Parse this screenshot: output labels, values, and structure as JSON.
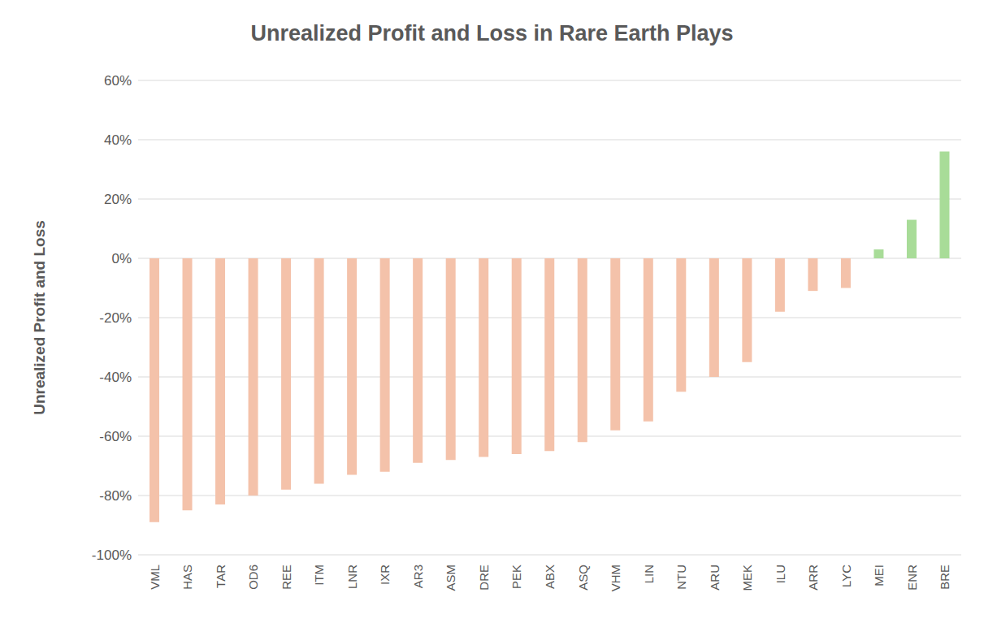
{
  "chart_data": {
    "type": "bar",
    "title": "Unrealized Profit and Loss in Rare Earth Plays",
    "y_label": "Unrealized Profit and Loss",
    "categories": [
      "VML",
      "HAS",
      "TAR",
      "OD6",
      "REE",
      "ITM",
      "LNR",
      "IXR",
      "AR3",
      "ASM",
      "DRE",
      "PEK",
      "ABX",
      "ASQ",
      "VHM",
      "LIN",
      "NTU",
      "ARU",
      "MEK",
      "ILU",
      "ARR",
      "LYC",
      "MEI",
      "ENR",
      "BRE"
    ],
    "values": [
      -89,
      -85,
      -83,
      -80,
      -78,
      -76,
      -73,
      -72,
      -69,
      -68,
      -67,
      -66,
      -65,
      -62,
      -58,
      -55,
      -45,
      -40,
      -35,
      -18,
      -11,
      -10,
      3,
      13,
      36
    ],
    "colors": [
      "#f4c2aa",
      "#f4c2aa",
      "#f4c2aa",
      "#f4c2aa",
      "#f4c2aa",
      "#f4c2aa",
      "#f4c2aa",
      "#f4c2aa",
      "#f4c2aa",
      "#f4c2aa",
      "#f4c2aa",
      "#f4c2aa",
      "#f4c2aa",
      "#f4c2aa",
      "#f4c2aa",
      "#f4c2aa",
      "#f4c2aa",
      "#f4c2aa",
      "#f4c2aa",
      "#f4c2aa",
      "#f4c2aa",
      "#f4c2aa",
      "#a8dc98",
      "#a8dc98",
      "#a8dc98"
    ],
    "ylim": [
      -100,
      60
    ],
    "yticks": [
      {
        "value": -100,
        "label": "-100%"
      },
      {
        "value": -80,
        "label": "-80%"
      },
      {
        "value": -60,
        "label": "-60%"
      },
      {
        "value": -40,
        "label": "-40%"
      },
      {
        "value": -20,
        "label": "-20%"
      },
      {
        "value": 0,
        "label": "0%"
      },
      {
        "value": 20,
        "label": "20%"
      },
      {
        "value": 40,
        "label": "40%"
      },
      {
        "value": 60,
        "label": "60%"
      }
    ],
    "grid": true
  }
}
